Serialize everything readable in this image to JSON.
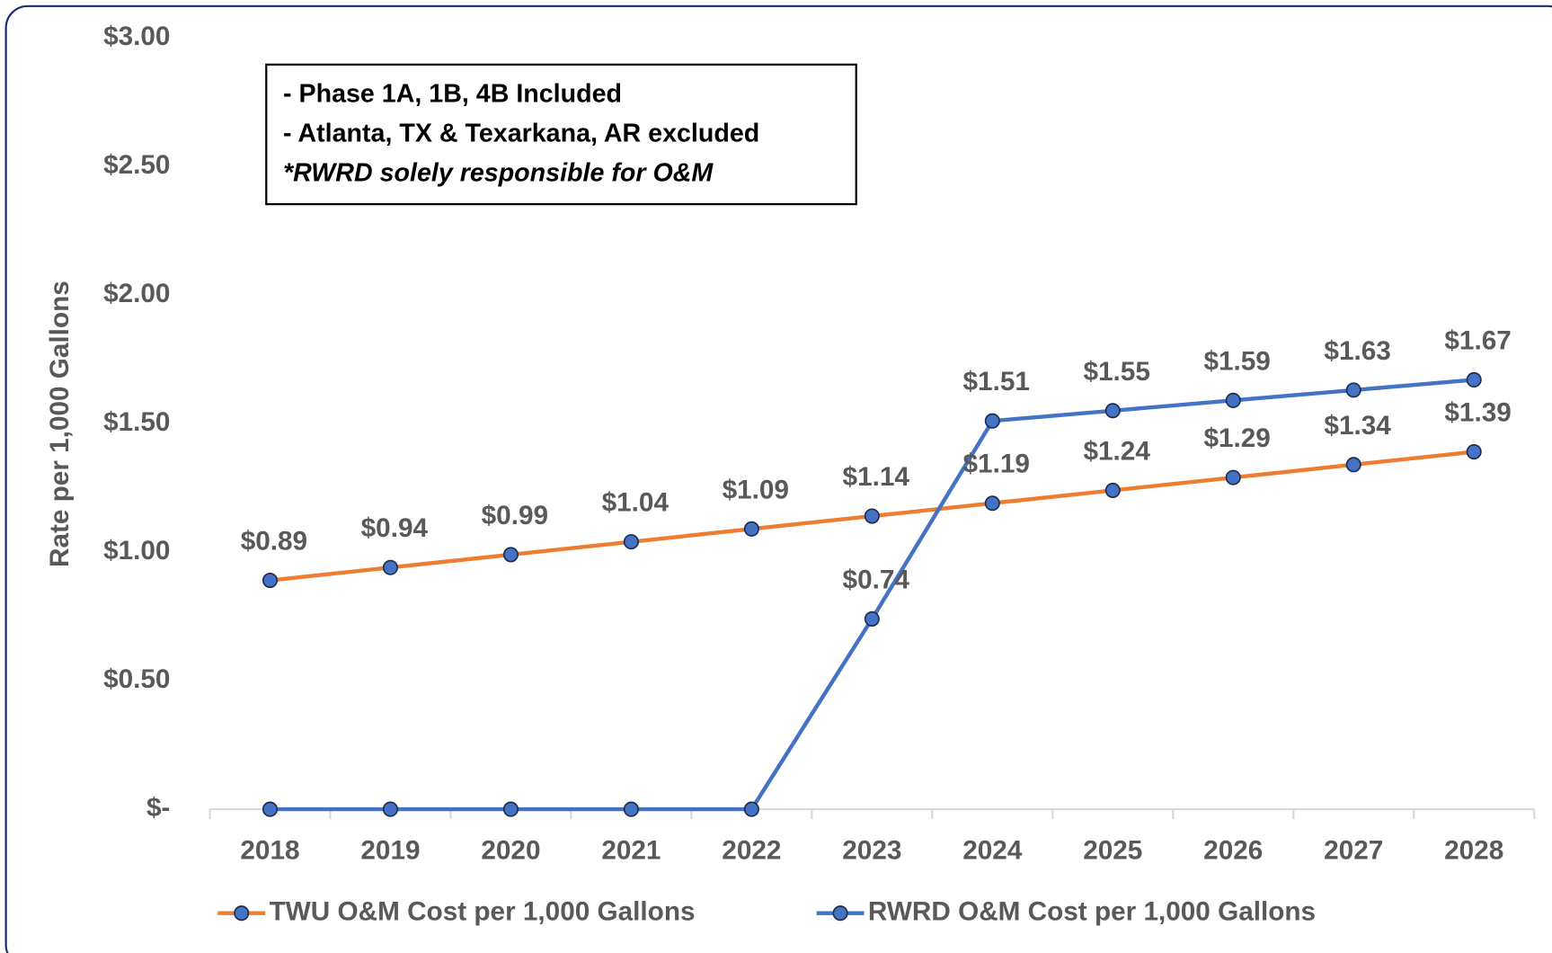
{
  "chart_data": {
    "type": "line",
    "y_axis_label": "Rate per 1,000 Gallons",
    "annotations": [
      "- Phase 1A, 1B, 4B Included",
      "- Atlanta, TX & Texarkana, AR excluded",
      "*RWRD solely responsible for O&M"
    ],
    "categories": [
      "2018",
      "2019",
      "2020",
      "2021",
      "2022",
      "2023",
      "2024",
      "2025",
      "2026",
      "2027",
      "2028"
    ],
    "series": [
      {
        "name": "TWU O&M Cost per 1,000 Gallons",
        "color": "#ed7d31",
        "marker_color": "#4472c4",
        "values": [
          0.89,
          0.94,
          0.99,
          1.04,
          1.09,
          1.14,
          1.19,
          1.24,
          1.29,
          1.34,
          1.39
        ],
        "value_labels": [
          "$0.89",
          "$0.94",
          "$0.99",
          "$1.04",
          "$1.09",
          "$1.14",
          "$1.19",
          "$1.24",
          "$1.29",
          "$1.34",
          "$1.39"
        ]
      },
      {
        "name": "RWRD O&M Cost per 1,000 Gallons",
        "color": "#4472c4",
        "marker_color": "#4472c4",
        "values": [
          0,
          0,
          0,
          0,
          0,
          0.74,
          1.51,
          1.55,
          1.59,
          1.63,
          1.67
        ],
        "value_labels": [
          null,
          null,
          null,
          null,
          null,
          "$0.74",
          "$1.51",
          "$1.55",
          "$1.59",
          "$1.63",
          "$1.67"
        ]
      }
    ],
    "ylim": [
      0,
      3
    ],
    "yticks": [
      {
        "value": 0,
        "label": "$-"
      },
      {
        "value": 0.5,
        "label": "$0.50"
      },
      {
        "value": 1,
        "label": "$1.00"
      },
      {
        "value": 1.5,
        "label": "$1.50"
      },
      {
        "value": 2,
        "label": "$2.00"
      },
      {
        "value": 2.5,
        "label": "$2.50"
      },
      {
        "value": 3,
        "label": "$3.00"
      }
    ],
    "grid": false,
    "legend": "bottom"
  }
}
